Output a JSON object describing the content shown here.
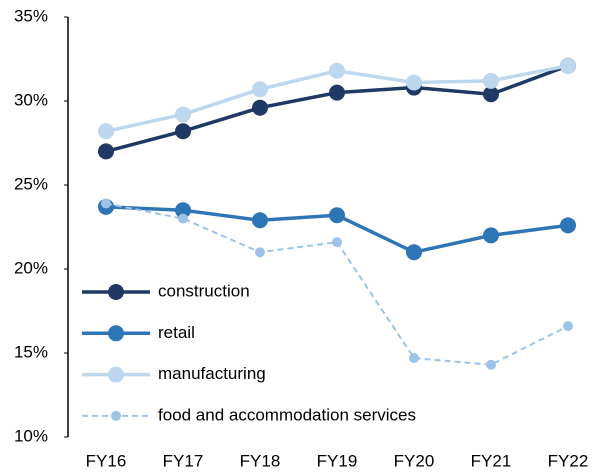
{
  "chart_data": {
    "type": "line",
    "categories": [
      "FY16",
      "FY17",
      "FY18",
      "FY19",
      "FY20",
      "FY21",
      "FY22"
    ],
    "series": [
      {
        "name": "construction",
        "color": "#1f3864",
        "style": "solid",
        "values": [
          27.0,
          28.2,
          29.6,
          30.5,
          30.8,
          30.4,
          32.1
        ]
      },
      {
        "name": "retail",
        "color": "#2e75b6",
        "style": "solid",
        "values": [
          23.7,
          23.5,
          22.9,
          23.2,
          21.0,
          22.0,
          22.6
        ]
      },
      {
        "name": "manufacturing",
        "color": "#bdd7ee",
        "style": "solid",
        "values": [
          28.2,
          29.2,
          30.7,
          31.8,
          31.1,
          31.2,
          32.1
        ]
      },
      {
        "name": "food and accommodation services",
        "color": "#9dc3e6",
        "style": "dashed",
        "values": [
          23.9,
          23.0,
          21.0,
          21.6,
          14.7,
          14.3,
          16.6
        ]
      }
    ],
    "ylim": [
      10,
      35
    ],
    "yticks": [
      {
        "value": 10,
        "label": "10%"
      },
      {
        "value": 15,
        "label": "15%"
      },
      {
        "value": 20,
        "label": "20%"
      },
      {
        "value": 25,
        "label": "25%"
      },
      {
        "value": 30,
        "label": "30%"
      },
      {
        "value": 35,
        "label": "35%"
      }
    ],
    "grid": false,
    "legend": "lower left"
  }
}
